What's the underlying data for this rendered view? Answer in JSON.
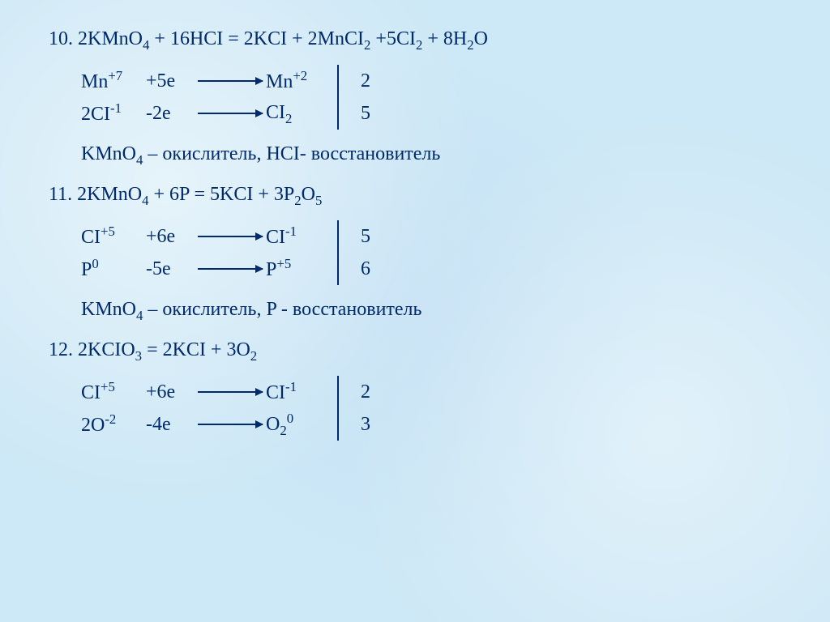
{
  "text_color": "#002a6b",
  "background_color": "#cde8f6",
  "font_family": "Times New Roman",
  "font_size_pt": 18,
  "problems": [
    {
      "number": "10.",
      "equation": "2KMnO₄ + 16HCI = 2KCI + 2MnCI₂ +5CI₂ + 8H₂O",
      "half_reactions": [
        {
          "species": "Mn⁺⁷",
          "electrons": "+5e",
          "product": "Mn⁺²",
          "coef": "2"
        },
        {
          "species": "2CI⁻¹",
          "electrons": "-2e",
          "product": "CI₂",
          "coef": "5"
        }
      ],
      "conclusion": "KMnO₄ – окислитель, HCI- восстановитель"
    },
    {
      "number": "11.",
      "equation": "2KMnO₄ + 6P = 5KCI + 3P₂O₅",
      "half_reactions": [
        {
          "species": "CI⁺⁵",
          "electrons": "+6e",
          "product": "CI⁻¹",
          "coef": "5"
        },
        {
          "species": "P⁰",
          "electrons": "-5e",
          "product": "P⁺⁵",
          "coef": "6"
        }
      ],
      "conclusion": "KMnO₄ – окислитель, P - восстановитель"
    },
    {
      "number": "12.",
      "equation": "2KCIO₃  = 2KCI + 3O₂",
      "half_reactions": [
        {
          "species": "CI⁺⁵",
          "electrons": "+6e",
          "product": "CI⁻¹",
          "coef": "2"
        },
        {
          "species": "2O⁻²",
          "electrons": "-4e",
          "product": "O₂⁰",
          "coef": "3"
        }
      ]
    }
  ],
  "labels": {
    "p10_num": "10.",
    "p10_eq_a": "2KMnO",
    "p10_eq_b": " + 16HCI = 2KCI + 2MnCI",
    "p10_eq_c": " +5CI",
    "p10_eq_d": " + 8H",
    "p10_eq_e": "O",
    "sub4": "4",
    "sub2": "2",
    "sub5": "5",
    "sub3": "3",
    "sub0": "0",
    "mn7": "Mn",
    "sup_p7": "+7",
    "plus5e": "+5e",
    "mn2": "Mn",
    "sup_p2": "+2",
    "coef2": "2",
    "cl_2m1": "2CI",
    "sup_m1": "-1",
    "minus2e": "-2e",
    "cl2": "CI",
    "coef5": "5",
    "p10_concl": "KMnO₄ – окислитель, HCI- восстановитель",
    "p10_concl_a": "KMnO",
    "p10_concl_b": " – окислитель, HCI- восстановитель",
    "p11_num": "11.",
    "p11_eq_a": "2KMnO",
    "p11_eq_b": " + 6P = 5KCI + 3P",
    "p11_eq_c": "O",
    "cl_p5": "CI",
    "sup_p5": "+5",
    "plus6e": "+6e",
    "cl_m1": "CI",
    "p0": "P",
    "sup_0": "0",
    "minus5e": "-5e",
    "p_p5": "P",
    "coef6": "6",
    "p11_concl_a": "KMnO",
    "p11_concl_b": " – окислитель, P - восстановитель",
    "p12_num": "12.",
    "p12_eq_a": "2KCIO",
    "p12_eq_b": "  = 2KCI + 3O",
    "o2m2": "2O",
    "sup_m2": "-2",
    "minus4e": "-4e",
    "o20": "O",
    "coef3": "3"
  }
}
